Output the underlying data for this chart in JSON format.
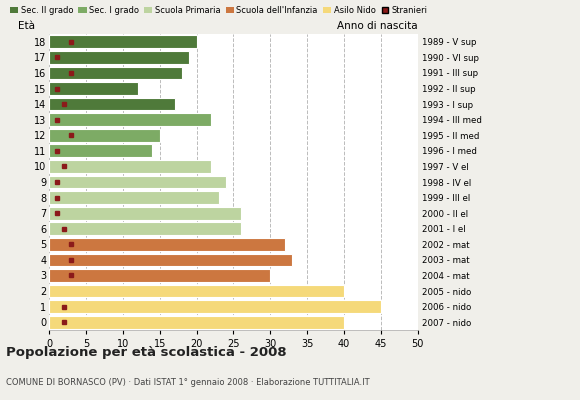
{
  "ages": [
    18,
    17,
    16,
    15,
    14,
    13,
    12,
    11,
    10,
    9,
    8,
    7,
    6,
    5,
    4,
    3,
    2,
    1,
    0
  ],
  "anno_nascita": [
    "1989 - V sup",
    "1990 - VI sup",
    "1991 - III sup",
    "1992 - II sup",
    "1993 - I sup",
    "1994 - III med",
    "1995 - II med",
    "1996 - I med",
    "1997 - V el",
    "1998 - IV el",
    "1999 - III el",
    "2000 - II el",
    "2001 - I el",
    "2002 - mat",
    "2003 - mat",
    "2004 - mat",
    "2005 - nido",
    "2006 - nido",
    "2007 - nido"
  ],
  "bar_values": [
    20,
    19,
    18,
    12,
    17,
    22,
    15,
    14,
    22,
    24,
    23,
    26,
    26,
    32,
    33,
    30,
    40,
    45,
    40
  ],
  "bar_colors": [
    "#4f7a3a",
    "#4f7a3a",
    "#4f7a3a",
    "#4f7a3a",
    "#4f7a3a",
    "#7dab65",
    "#7dab65",
    "#7dab65",
    "#bdd4a0",
    "#bdd4a0",
    "#bdd4a0",
    "#bdd4a0",
    "#bdd4a0",
    "#cc7740",
    "#cc7740",
    "#cc7740",
    "#f5d97a",
    "#f5d97a",
    "#f5d97a"
  ],
  "stranieri_x": [
    3,
    1,
    3,
    1,
    2,
    1,
    3,
    1,
    2,
    1,
    1,
    1,
    2,
    3,
    3,
    3,
    1,
    2,
    2
  ],
  "stranieri_show": [
    true,
    true,
    true,
    true,
    true,
    true,
    true,
    true,
    true,
    true,
    true,
    true,
    true,
    true,
    true,
    true,
    false,
    true,
    true
  ],
  "stranieri_color": "#8b1a1a",
  "legend_labels": [
    "Sec. II grado",
    "Sec. I grado",
    "Scuola Primaria",
    "Scuola dell'Infanzia",
    "Asilo Nido",
    "Stranieri"
  ],
  "legend_colors": [
    "#4f7a3a",
    "#7dab65",
    "#bdd4a0",
    "#cc7740",
    "#f5d97a",
    "#8b1a1a"
  ],
  "title": "Popolazione per età scolastica - 2008",
  "subtitle": "COMUNE DI BORNASCO (PV) · Dati ISTAT 1° gennaio 2008 · Elaborazione TUTTITALIA.IT",
  "ylabel_eta": "Età",
  "ylabel_anno": "Anno di nascita",
  "xlim": [
    0,
    50
  ],
  "xticks": [
    0,
    5,
    10,
    15,
    20,
    25,
    30,
    35,
    40,
    45,
    50
  ],
  "bg_color": "#f0efea",
  "plot_bg": "#ffffff",
  "grid_color": "#bbbbbb",
  "bar_height": 0.82
}
